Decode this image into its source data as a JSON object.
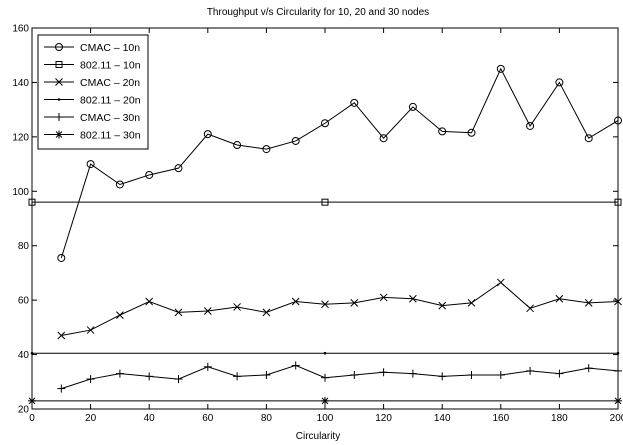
{
  "chart_data": {
    "type": "line",
    "title": "Throughput v/s Circularity for 10, 20 and 30 nodes",
    "xlabel": "Circularity",
    "ylabel": "",
    "xlim": [
      0,
      200
    ],
    "ylim": [
      20,
      160
    ],
    "xticks": [
      0,
      20,
      40,
      60,
      80,
      100,
      120,
      140,
      160,
      180,
      200
    ],
    "yticks": [
      20,
      40,
      60,
      80,
      100,
      120,
      140,
      160
    ],
    "grid": false,
    "legend_position": "top-left",
    "series": [
      {
        "name": "CMAC – 10n",
        "marker": "circle",
        "x": [
          10,
          20,
          30,
          40,
          50,
          60,
          70,
          80,
          90,
          100,
          110,
          120,
          130,
          140,
          150,
          160,
          170,
          180,
          190,
          200
        ],
        "y": [
          75.5,
          110,
          102.5,
          106,
          108.5,
          121,
          117,
          115.5,
          118.5,
          125,
          132.5,
          119.5,
          131,
          122,
          121.5,
          145,
          124,
          140,
          119.5,
          126
        ]
      },
      {
        "name": "802.11 – 10n",
        "marker": "square",
        "x": [
          0,
          100,
          200
        ],
        "y": [
          96,
          96,
          96
        ],
        "markers_at": [
          0,
          100,
          200
        ]
      },
      {
        "name": "CMAC – 20n",
        "marker": "x",
        "x": [
          10,
          20,
          30,
          40,
          50,
          60,
          70,
          80,
          90,
          100,
          110,
          120,
          130,
          140,
          150,
          160,
          170,
          180,
          190,
          200
        ],
        "y": [
          47,
          49,
          54.5,
          59.5,
          55.5,
          56,
          57.5,
          55.5,
          59.5,
          58.5,
          59,
          61,
          60.5,
          58,
          59,
          66.5,
          57,
          60.5,
          59,
          59.5
        ]
      },
      {
        "name": "802.11 – 20n",
        "marker": "point",
        "x": [
          0,
          100,
          200
        ],
        "y": [
          40.5,
          40.5,
          40.5
        ],
        "markers_at": [
          0,
          100,
          200
        ]
      },
      {
        "name": "CMAC – 30n",
        "marker": "plus",
        "x": [
          10,
          20,
          30,
          40,
          50,
          60,
          70,
          80,
          90,
          100,
          110,
          120,
          130,
          140,
          150,
          160,
          170,
          180,
          190,
          200
        ],
        "y": [
          27.5,
          31,
          33,
          32,
          31,
          35.5,
          32,
          32.5,
          36,
          31.5,
          32.5,
          33.5,
          33,
          32,
          32.5,
          32.5,
          34,
          33,
          35,
          34
        ]
      },
      {
        "name": "802.11 – 30n",
        "marker": "star",
        "x": [
          0,
          100,
          200
        ],
        "y": [
          23,
          23,
          23
        ],
        "markers_at": [
          0,
          100,
          200
        ]
      }
    ]
  }
}
